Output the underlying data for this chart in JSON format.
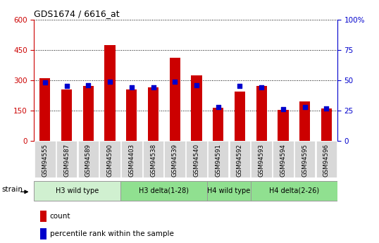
{
  "title": "GDS1674 / 6616_at",
  "samples": [
    "GSM94555",
    "GSM94587",
    "GSM94589",
    "GSM94590",
    "GSM94403",
    "GSM94538",
    "GSM94539",
    "GSM94540",
    "GSM94591",
    "GSM94592",
    "GSM94593",
    "GSM94594",
    "GSM94595",
    "GSM94596"
  ],
  "count_values": [
    310,
    255,
    270,
    475,
    255,
    265,
    410,
    325,
    165,
    245,
    270,
    155,
    195,
    160
  ],
  "percentile_values": [
    48,
    45,
    46,
    49,
    44,
    44,
    49,
    46,
    28,
    45,
    44,
    26,
    28,
    27
  ],
  "groups": [
    {
      "label": "H3 wild type",
      "start": 0,
      "end": 3,
      "color": "#d0f0d0"
    },
    {
      "label": "H3 delta(1-28)",
      "start": 4,
      "end": 7,
      "color": "#90e090"
    },
    {
      "label": "H4 wild type",
      "start": 8,
      "end": 9,
      "color": "#90e090"
    },
    {
      "label": "H4 delta(2-26)",
      "start": 10,
      "end": 13,
      "color": "#90e090"
    }
  ],
  "bar_color": "#cc0000",
  "dot_color": "#0000cc",
  "left_ylim": [
    0,
    600
  ],
  "right_ylim": [
    0,
    100
  ],
  "left_yticks": [
    0,
    150,
    300,
    450,
    600
  ],
  "right_yticks": [
    0,
    25,
    50,
    75,
    100
  ],
  "left_ycolor": "#cc0000",
  "right_ycolor": "#0000cc",
  "bg_color": "#ffffff",
  "tick_bg_color": "#d8d8d8",
  "bar_width": 0.5
}
